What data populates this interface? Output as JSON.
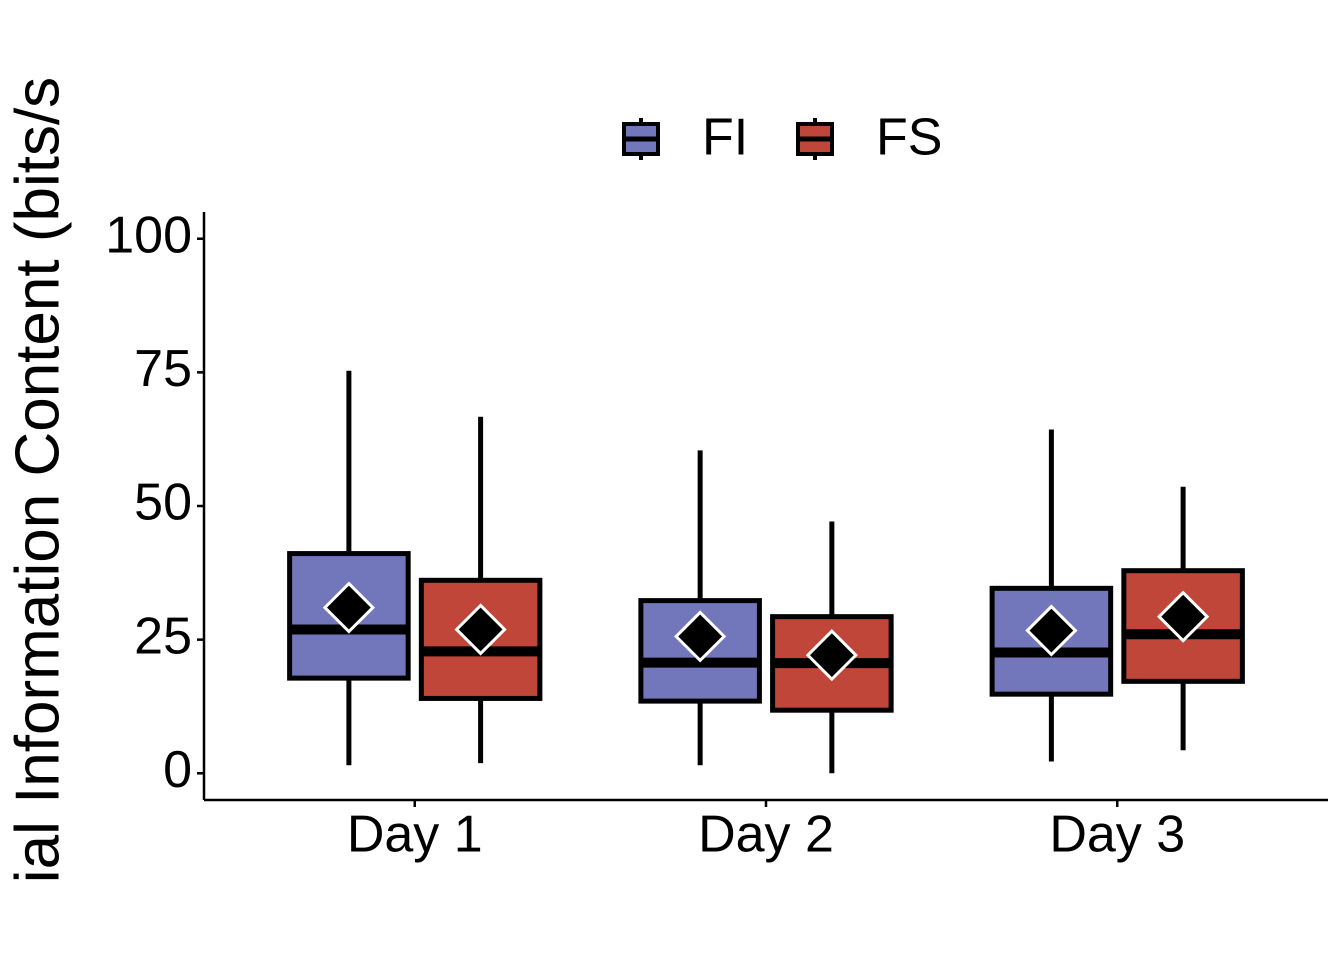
{
  "chart_data": {
    "type": "box",
    "y_label": "ial Information Content (bits/s",
    "categories": [
      "Day 1",
      "Day 2",
      "Day 3"
    ],
    "ylim": [
      -5,
      105
    ],
    "yticks": [
      0,
      25,
      50,
      75,
      100
    ],
    "legend": "top",
    "series": [
      {
        "name": "FI",
        "color": "#7276bb",
        "min": [
          1.5,
          1.5,
          2.2
        ],
        "q1": [
          17.8,
          13.5,
          14.8
        ],
        "median": [
          26.9,
          20.7,
          22.6
        ],
        "q3": [
          41.1,
          32.3,
          34.6
        ],
        "max": [
          75.3,
          60.4,
          64.3
        ],
        "mean": [
          31.0,
          25.6,
          26.7
        ]
      },
      {
        "name": "FS",
        "color": "#c0463a",
        "min": [
          1.9,
          0,
          4.3
        ],
        "q1": [
          14.0,
          11.8,
          17.2
        ],
        "median": [
          22.8,
          20.6,
          26.0
        ],
        "q3": [
          36.1,
          29.3,
          37.9
        ],
        "max": [
          66.7,
          47.1,
          53.6
        ],
        "mean": [
          26.9,
          22.1,
          29.3
        ]
      }
    ]
  }
}
